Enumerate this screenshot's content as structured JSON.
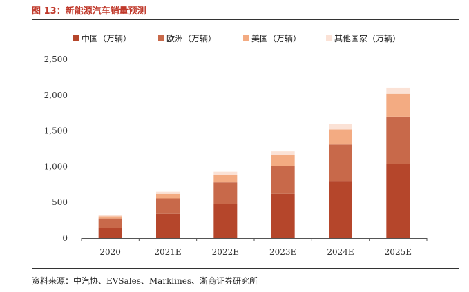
{
  "header": {
    "figure_title": "图 13：新能源汽车销量预测"
  },
  "footer": {
    "source": "资料来源：中汽协、EVSales、Marklines、浙商证券研究所"
  },
  "colors": {
    "china": "#b5462b",
    "europe": "#c8694a",
    "usa": "#f3ab82",
    "others": "#fbe2d6",
    "title": "#c0392b"
  },
  "chart_data": {
    "type": "bar",
    "stacked": true,
    "categories": [
      "2020",
      "2021E",
      "2022E",
      "2023E",
      "2024E",
      "2025E"
    ],
    "series": [
      {
        "name": "中国（万辆）",
        "values": [
          137,
          340,
          480,
          620,
          800,
          1040
        ]
      },
      {
        "name": "欧洲（万辆）",
        "values": [
          137,
          215,
          300,
          390,
          510,
          660
        ]
      },
      {
        "name": "美国（万辆）",
        "values": [
          30,
          65,
          105,
          150,
          210,
          320
        ]
      },
      {
        "name": "其他国家（万辆）",
        "values": [
          16,
          30,
          45,
          55,
          75,
          85
        ]
      }
    ],
    "yticks": [
      "0",
      "500",
      "1,000",
      "1,500",
      "2,000",
      "2,500"
    ],
    "ylim": [
      0,
      2500
    ],
    "title": "",
    "xlabel": "",
    "ylabel": "",
    "grid": false,
    "legend_position": "top"
  }
}
